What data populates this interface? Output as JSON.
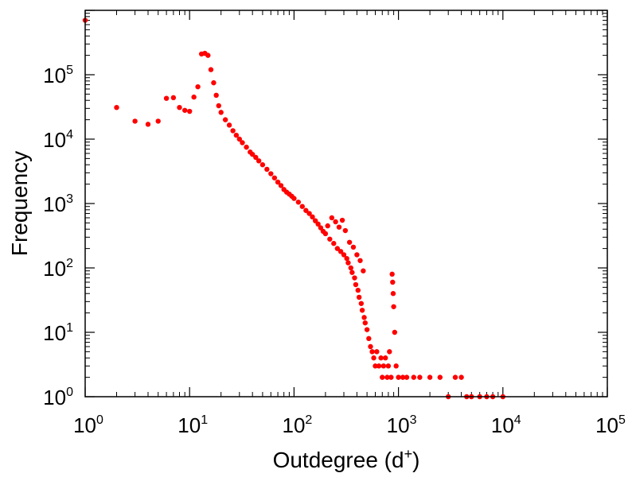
{
  "chart_data": {
    "type": "scatter",
    "title": "",
    "xlabel": "Outdegree (d",
    "xlabel_sup": "+",
    "xlabel_close": ")",
    "ylabel": "Frequency",
    "xscale": "log",
    "yscale": "log",
    "xlim": [
      1,
      100000
    ],
    "ylim": [
      1,
      1000000
    ],
    "x_ticks": [
      {
        "base": "10",
        "exp": "0"
      },
      {
        "base": "10",
        "exp": "1"
      },
      {
        "base": "10",
        "exp": "2"
      },
      {
        "base": "10",
        "exp": "3"
      },
      {
        "base": "10",
        "exp": "4"
      },
      {
        "base": "10",
        "exp": "5"
      }
    ],
    "y_ticks": [
      {
        "base": "10",
        "exp": "0"
      },
      {
        "base": "10",
        "exp": "1"
      },
      {
        "base": "10",
        "exp": "2"
      },
      {
        "base": "10",
        "exp": "3"
      },
      {
        "base": "10",
        "exp": "4"
      },
      {
        "base": "10",
        "exp": "5"
      }
    ],
    "marker_color": "#ff0000",
    "grid": false,
    "series": [
      {
        "points": [
          [
            1,
            700000
          ],
          [
            2,
            31000
          ],
          [
            3,
            19000
          ],
          [
            4,
            17000
          ],
          [
            5,
            19000
          ],
          [
            6,
            43000
          ],
          [
            7,
            44000
          ],
          [
            8,
            31000
          ],
          [
            9,
            28000
          ],
          [
            10,
            27000
          ],
          [
            11,
            45000
          ],
          [
            12,
            65000
          ],
          [
            13,
            210000
          ],
          [
            14,
            215000
          ],
          [
            15,
            200000
          ],
          [
            16,
            120000
          ],
          [
            17,
            75000
          ],
          [
            18,
            48000
          ],
          [
            19,
            33000
          ],
          [
            20,
            26000
          ],
          [
            22,
            20000
          ],
          [
            24,
            16500
          ],
          [
            26,
            13500
          ],
          [
            28,
            11500
          ],
          [
            30,
            10000
          ],
          [
            32,
            8800
          ],
          [
            35,
            7500
          ],
          [
            38,
            6300
          ],
          [
            40,
            5800
          ],
          [
            43,
            5200
          ],
          [
            46,
            4600
          ],
          [
            50,
            4000
          ],
          [
            55,
            3400
          ],
          [
            60,
            2900
          ],
          [
            65,
            2500
          ],
          [
            70,
            2150
          ],
          [
            75,
            1900
          ],
          [
            80,
            1650
          ],
          [
            85,
            1500
          ],
          [
            90,
            1400
          ],
          [
            95,
            1300
          ],
          [
            100,
            1200
          ],
          [
            110,
            1050
          ],
          [
            120,
            900
          ],
          [
            130,
            780
          ],
          [
            140,
            700
          ],
          [
            150,
            620
          ],
          [
            160,
            540
          ],
          [
            170,
            480
          ],
          [
            180,
            420
          ],
          [
            190,
            370
          ],
          [
            200,
            340
          ],
          [
            210,
            450
          ],
          [
            220,
            280
          ],
          [
            230,
            600
          ],
          [
            240,
            240
          ],
          [
            250,
            520
          ],
          [
            260,
            200
          ],
          [
            270,
            430
          ],
          [
            280,
            180
          ],
          [
            290,
            550
          ],
          [
            300,
            160
          ],
          [
            310,
            380
          ],
          [
            320,
            140
          ],
          [
            330,
            120
          ],
          [
            340,
            250
          ],
          [
            350,
            100
          ],
          [
            360,
            85
          ],
          [
            370,
            210
          ],
          [
            380,
            70
          ],
          [
            390,
            55
          ],
          [
            400,
            160
          ],
          [
            410,
            45
          ],
          [
            420,
            35
          ],
          [
            430,
            130
          ],
          [
            440,
            28
          ],
          [
            450,
            22
          ],
          [
            460,
            90
          ],
          [
            470,
            17
          ],
          [
            480,
            14
          ],
          [
            500,
            11
          ],
          [
            520,
            8
          ],
          [
            540,
            6
          ],
          [
            560,
            5
          ],
          [
            580,
            4
          ],
          [
            600,
            3
          ],
          [
            620,
            5
          ],
          [
            650,
            3
          ],
          [
            680,
            4
          ],
          [
            700,
            2
          ],
          [
            720,
            3
          ],
          [
            750,
            4
          ],
          [
            780,
            2
          ],
          [
            800,
            3
          ],
          [
            820,
            5
          ],
          [
            850,
            2
          ],
          [
            870,
            80
          ],
          [
            880,
            60
          ],
          [
            890,
            40
          ],
          [
            900,
            25
          ],
          [
            920,
            10
          ],
          [
            950,
            3
          ],
          [
            1000,
            2
          ],
          [
            1100,
            2
          ],
          [
            1200,
            2
          ],
          [
            1400,
            2
          ],
          [
            1600,
            2
          ],
          [
            2000,
            2
          ],
          [
            2500,
            2
          ],
          [
            3000,
            1
          ],
          [
            3500,
            2
          ],
          [
            4000,
            2
          ],
          [
            4500,
            1
          ],
          [
            5000,
            1
          ],
          [
            6000,
            1
          ],
          [
            7000,
            1
          ],
          [
            8000,
            1
          ],
          [
            10000,
            1
          ]
        ]
      }
    ]
  }
}
